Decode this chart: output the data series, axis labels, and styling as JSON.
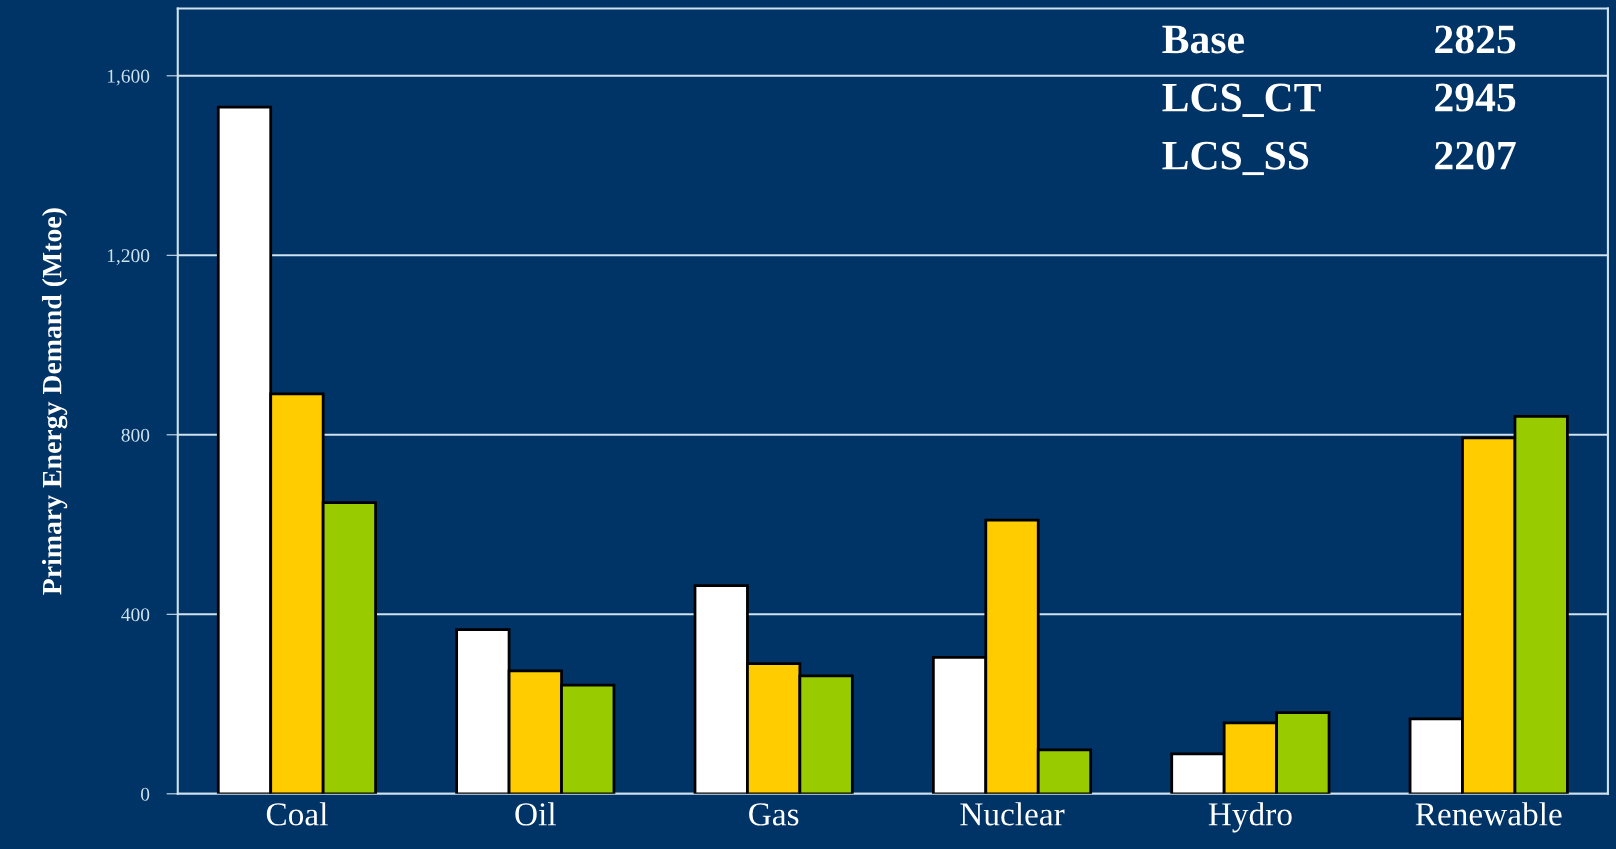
{
  "chart_data": {
    "type": "bar",
    "ylabel": "Primary Energy Demand (Mtoe)",
    "categories": [
      "Coal",
      "Oil",
      "Gas",
      "Nuclear",
      "Hydro",
      "Renewable"
    ],
    "series": [
      {
        "color": "#ffffff",
        "values": [
          1530,
          366,
          464,
          304,
          89,
          167
        ]
      },
      {
        "color": "#ffcc00",
        "values": [
          891,
          274,
          290,
          610,
          158,
          793
        ]
      },
      {
        "color": "#99cc00",
        "values": [
          649,
          242,
          263,
          98,
          181,
          841
        ]
      }
    ],
    "ylim": [
      0,
      1750
    ],
    "yticks": [
      0,
      400,
      800,
      {
        "value": 1200,
        "label": "1,200"
      },
      {
        "value": 1600,
        "label": "1,600"
      }
    ],
    "grid": "y",
    "annotations": [
      "Base",
      "2825",
      "LCS_CT",
      "2945",
      "LCS_SS",
      "2207"
    ]
  }
}
